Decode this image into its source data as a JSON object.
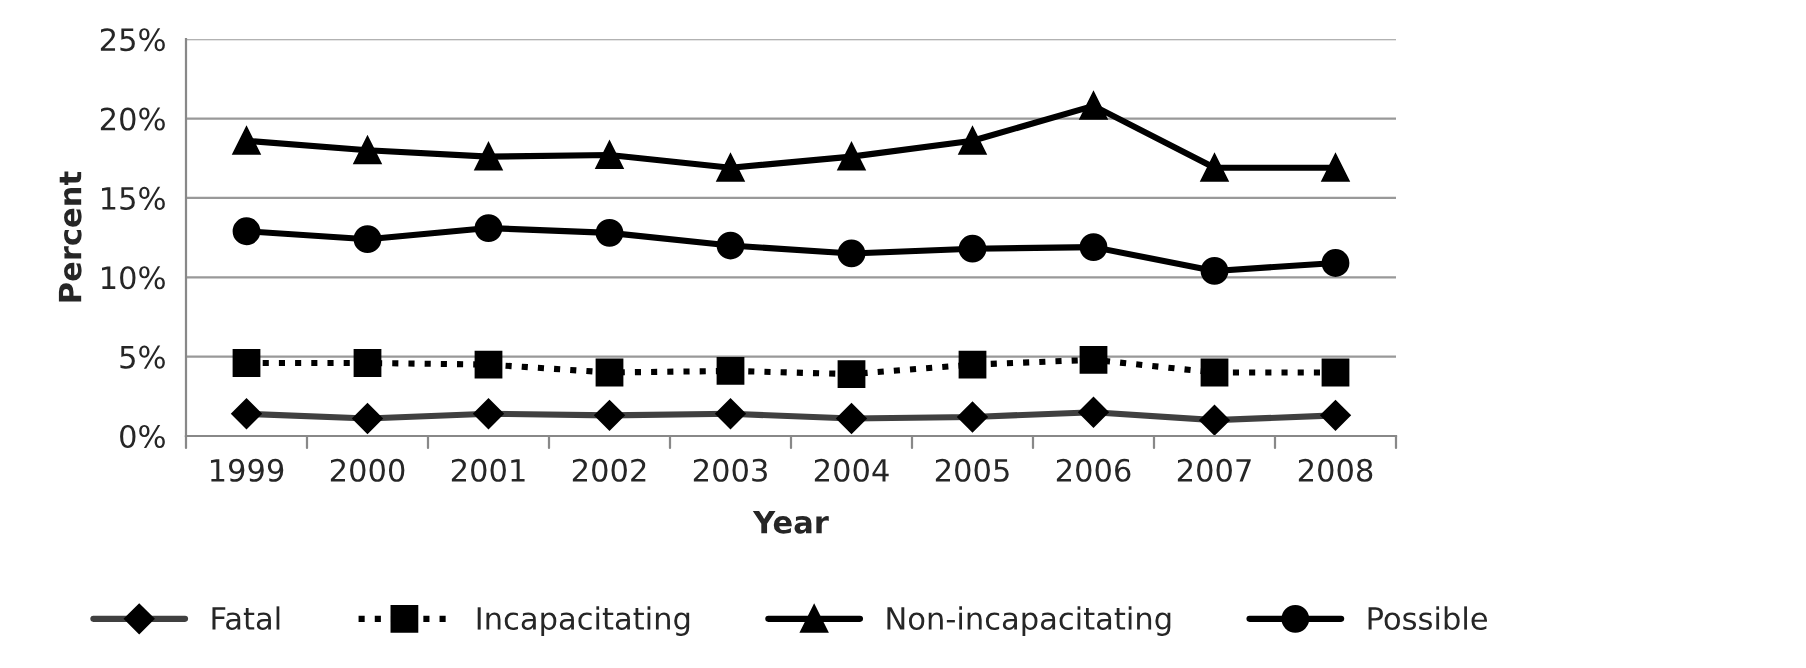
{
  "chart_data": {
    "type": "line",
    "xlabel": "Year",
    "ylabel": "Percent",
    "categories": [
      "1999",
      "2000",
      "2001",
      "2002",
      "2003",
      "2004",
      "2005",
      "2006",
      "2007",
      "2008"
    ],
    "series": [
      {
        "name": "Fatal",
        "color": "#404040",
        "marker": "diamond",
        "line_style": "solid",
        "values": [
          1.4,
          1.1,
          1.4,
          1.3,
          1.4,
          1.1,
          1.2,
          1.5,
          1.0,
          1.3
        ]
      },
      {
        "name": "Incapacitating",
        "color": "#000000",
        "marker": "square",
        "line_style": "dotted",
        "values": [
          4.6,
          4.6,
          4.5,
          4.0,
          4.1,
          3.9,
          4.5,
          4.8,
          4.0,
          4.0
        ]
      },
      {
        "name": "Non-incapacitating",
        "color": "#000000",
        "marker": "triangle",
        "line_style": "solid",
        "values": [
          18.6,
          18.0,
          17.6,
          17.7,
          16.9,
          17.6,
          18.6,
          20.8,
          16.9,
          16.9
        ]
      },
      {
        "name": "Possible",
        "color": "#000000",
        "marker": "circle",
        "line_style": "solid",
        "values": [
          12.9,
          12.4,
          13.1,
          12.8,
          12.0,
          11.5,
          11.8,
          11.9,
          10.4,
          10.9
        ]
      }
    ],
    "ylim": [
      0,
      25
    ],
    "yticks": [
      {
        "value": 0,
        "label": "0%"
      },
      {
        "value": 5,
        "label": "5%"
      },
      {
        "value": 10,
        "label": "10%"
      },
      {
        "value": 15,
        "label": "15%"
      },
      {
        "value": 20,
        "label": "20%"
      },
      {
        "value": 25,
        "label": "25%"
      }
    ],
    "grid": "y",
    "legend": "bottom"
  }
}
